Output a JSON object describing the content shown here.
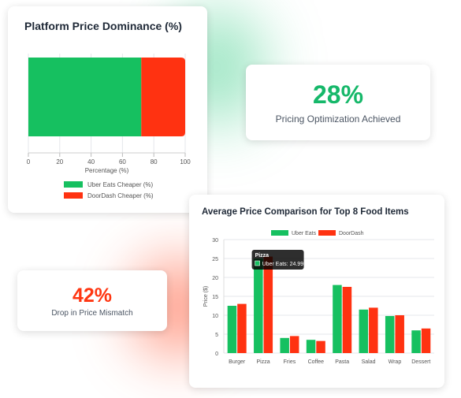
{
  "colors": {
    "uber": "#16c060",
    "doordash": "#ff3211",
    "grid": "#e5e7eb",
    "axis_text": "#555555"
  },
  "dominance_card": {
    "title": "Platform Price Dominance (%)"
  },
  "stat1": {
    "value": "28%",
    "label": "Pricing Optimization Achieved"
  },
  "stat2": {
    "value": "42%",
    "label": "Drop in Price Mismatch"
  },
  "comparison_card": {
    "title": "Average Price Comparison for Top 8 Food Items",
    "tooltip": {
      "title": "Pizza",
      "text": "Uber Eats: 24.99"
    }
  },
  "chart_data": [
    {
      "type": "bar",
      "orientation": "horizontal",
      "stacked": true,
      "title": "Platform Price Dominance (%)",
      "xlabel": "Percentage (%)",
      "xlim": [
        0,
        100
      ],
      "xticks": [
        0,
        20,
        40,
        60,
        80,
        100
      ],
      "legend": "bottom",
      "series": [
        {
          "name": "Uber Eats Cheaper (%)",
          "color": "#16c060",
          "values": [
            72
          ]
        },
        {
          "name": "DoorDash Cheaper (%)",
          "color": "#ff3211",
          "values": [
            28
          ]
        }
      ]
    },
    {
      "type": "bar",
      "title": "Average Price Comparison for Top 8 Food Items",
      "ylabel": "Price ($)",
      "ylim": [
        0,
        30
      ],
      "yticks": [
        0,
        5,
        10,
        15,
        20,
        25,
        30
      ],
      "legend": "top",
      "categories": [
        "Burger",
        "Pizza",
        "Fries",
        "Coffee",
        "Pasta",
        "Salad",
        "Wrap",
        "Dessert"
      ],
      "series": [
        {
          "name": "Uber Eats",
          "color": "#16c060",
          "values": [
            12.5,
            24.99,
            4.0,
            3.5,
            18.0,
            11.5,
            9.8,
            6.0
          ]
        },
        {
          "name": "DoorDash",
          "color": "#ff3211",
          "values": [
            13.0,
            25.5,
            4.5,
            3.2,
            17.5,
            12.0,
            10.0,
            6.5
          ]
        }
      ]
    }
  ]
}
